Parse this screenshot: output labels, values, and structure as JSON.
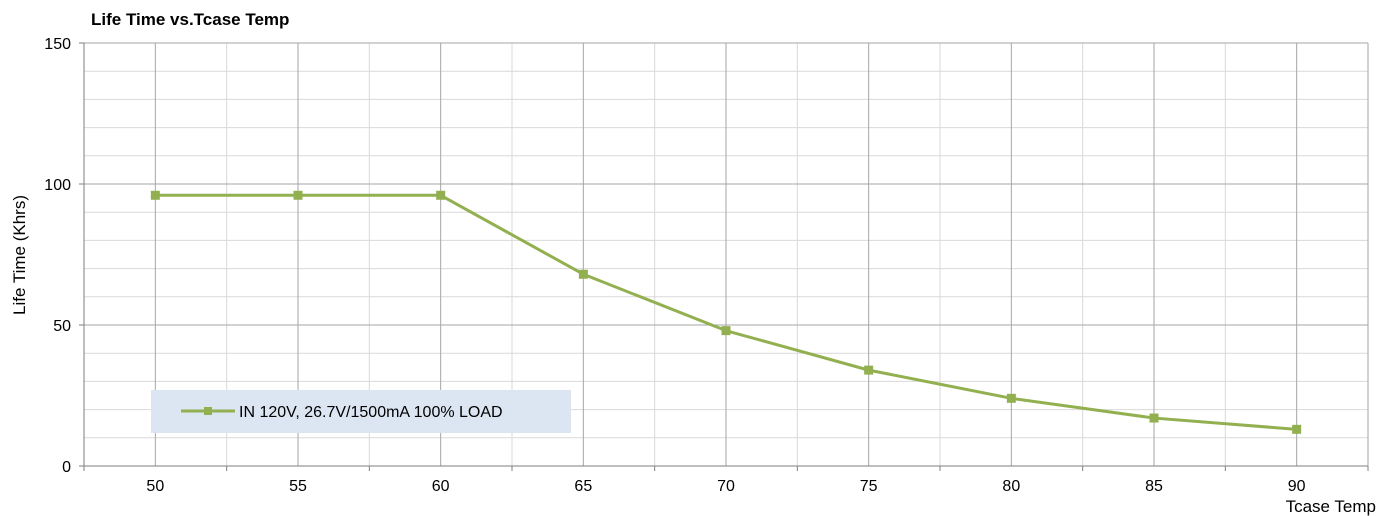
{
  "chart_data": {
    "type": "line",
    "title": "Life Time vs.Tcase Temp",
    "xlabel": "Tcase Temp",
    "ylabel": "Life Time (Khrs)",
    "x": [
      50,
      55,
      60,
      65,
      70,
      75,
      80,
      85,
      90
    ],
    "xlim": [
      47.5,
      92.5
    ],
    "ylim": [
      0,
      150
    ],
    "yticks": [
      0,
      50,
      100,
      150
    ],
    "y_minor_step": 10,
    "grid": true,
    "legend_position": "bottom-left",
    "series": [
      {
        "name": "IN 120V, 26.7V/1500mA 100% LOAD",
        "values": [
          96,
          96,
          96,
          68,
          48,
          34,
          24,
          17,
          13
        ],
        "color": "#92b050",
        "marker": "square"
      }
    ]
  },
  "colors": {
    "major_grid": "#a6a6a6",
    "minor_grid": "#d9d9d9",
    "axis": "#7f7f7f",
    "legend_bg": "#dce6f2"
  }
}
